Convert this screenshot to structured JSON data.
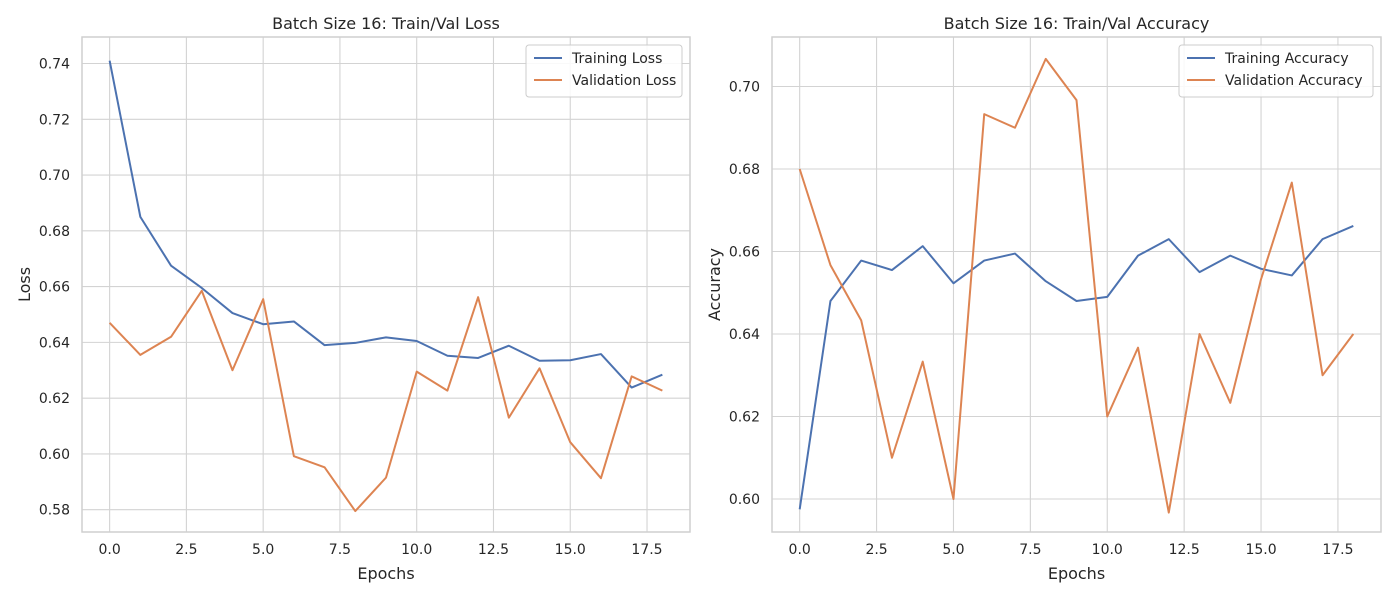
{
  "colors": {
    "series_1": "#4c72b0",
    "series_2": "#dd8452",
    "grid": "#d3d3d3",
    "text": "#262626"
  },
  "chart_data": [
    {
      "type": "line",
      "title": "Batch Size 16:  Train/Val Loss",
      "xlabel": "Epochs",
      "ylabel": "Loss",
      "xlim": [
        -0.9,
        18.9
      ],
      "ylim": [
        0.572,
        0.7495
      ],
      "xticks": [
        0.0,
        2.5,
        5.0,
        7.5,
        10.0,
        12.5,
        15.0,
        17.5
      ],
      "xtick_labels": [
        "0.0",
        "2.5",
        "5.0",
        "7.5",
        "10.0",
        "12.5",
        "15.0",
        "17.5"
      ],
      "yticks": [
        0.58,
        0.6,
        0.62,
        0.64,
        0.66,
        0.68,
        0.7,
        0.72,
        0.74
      ],
      "ytick_labels": [
        "0.58",
        "0.60",
        "0.62",
        "0.64",
        "0.66",
        "0.68",
        "0.70",
        "0.72",
        "0.74"
      ],
      "grid": true,
      "legend_position": "top-right",
      "x": [
        0,
        1,
        2,
        3,
        4,
        5,
        6,
        7,
        8,
        9,
        10,
        11,
        12,
        13,
        14,
        15,
        16,
        17,
        18
      ],
      "series": [
        {
          "name": "Training Loss",
          "values": [
            0.741,
            0.685,
            0.6675,
            0.6595,
            0.6505,
            0.6465,
            0.6475,
            0.639,
            0.6398,
            0.6418,
            0.6405,
            0.6352,
            0.6344,
            0.6388,
            0.6334,
            0.6336,
            0.6358,
            0.6238,
            0.6284
          ]
        },
        {
          "name": "Validation Loss",
          "values": [
            0.647,
            0.6355,
            0.642,
            0.6585,
            0.63,
            0.6555,
            0.5992,
            0.5952,
            0.5795,
            0.5915,
            0.6295,
            0.6227,
            0.6562,
            0.613,
            0.6307,
            0.6042,
            0.5913,
            0.6278,
            0.6227
          ]
        }
      ]
    },
    {
      "type": "line",
      "title": "Batch Size 16:  Train/Val Accuracy",
      "xlabel": "Epochs",
      "ylabel": "Accuracy",
      "xlim": [
        -0.9,
        18.9
      ],
      "ylim": [
        0.592,
        0.712
      ],
      "xticks": [
        0.0,
        2.5,
        5.0,
        7.5,
        10.0,
        12.5,
        15.0,
        17.5
      ],
      "xtick_labels": [
        "0.0",
        "2.5",
        "5.0",
        "7.5",
        "10.0",
        "12.5",
        "15.0",
        "17.5"
      ],
      "yticks": [
        0.6,
        0.62,
        0.64,
        0.66,
        0.68,
        0.7
      ],
      "ytick_labels": [
        "0.60",
        "0.62",
        "0.64",
        "0.66",
        "0.68",
        "0.70"
      ],
      "grid": true,
      "legend_position": "top-right",
      "x": [
        0,
        1,
        2,
        3,
        4,
        5,
        6,
        7,
        8,
        9,
        10,
        11,
        12,
        13,
        14,
        15,
        16,
        17,
        18
      ],
      "series": [
        {
          "name": "Training Accuracy",
          "values": [
            0.5975,
            0.648,
            0.6578,
            0.6555,
            0.6613,
            0.6523,
            0.6578,
            0.6595,
            0.6528,
            0.648,
            0.649,
            0.659,
            0.663,
            0.655,
            0.659,
            0.6558,
            0.6542,
            0.663,
            0.6662
          ]
        },
        {
          "name": "Validation Accuracy",
          "values": [
            0.68,
            0.6567,
            0.6433,
            0.61,
            0.6333,
            0.6,
            0.6933,
            0.69,
            0.7067,
            0.6967,
            0.62,
            0.6367,
            0.5967,
            0.64,
            0.6233,
            0.6533,
            0.6767,
            0.63,
            0.64
          ]
        }
      ]
    }
  ]
}
